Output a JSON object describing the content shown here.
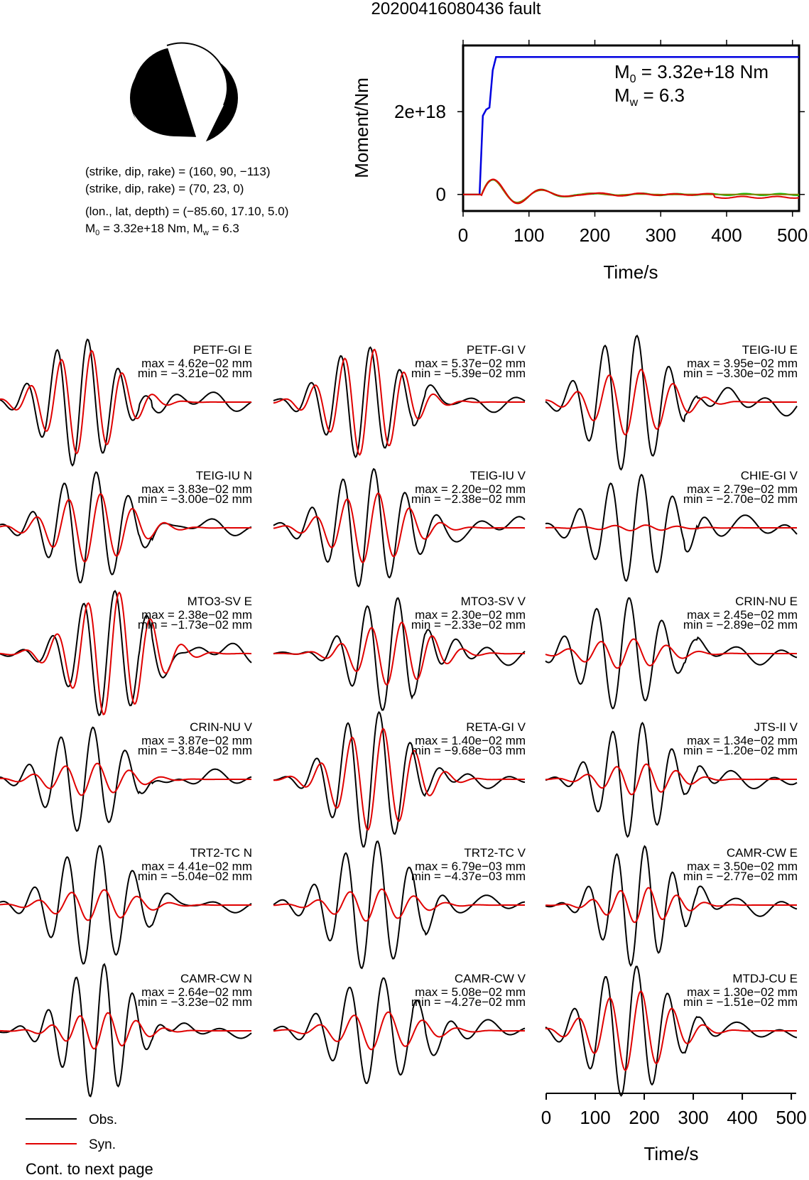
{
  "title": "20200416080436 fault",
  "source_info": {
    "line1": "(strike, dip, rake) = (160, 90, −113)",
    "line2": "(strike, dip, rake) = (70, 23, 0)",
    "line3": "(lon., lat, depth) = (−85.60, 17.10, 5.0)",
    "line4_a": "M",
    "line4_sub": "0",
    "line4_b": " = 3.32e+18 Nm, M",
    "line4_sub2": "w",
    "line4_c": " = 6.3"
  },
  "colors": {
    "obs": "#000000",
    "syn": "#e00000",
    "moment": "#0000e0",
    "green": "#00c000"
  },
  "legend": {
    "obs": "Obs.",
    "syn": "Syn.",
    "cont": "Cont. to next page"
  },
  "chart_data": [
    {
      "type": "line",
      "xlabel": "Time/s",
      "ylabel": "Moment/Nm",
      "xlim": [
        0,
        510
      ],
      "ylim": [
        -4e+17,
        3.6e+18
      ],
      "xticks": [
        "0",
        "100",
        "200",
        "300",
        "400",
        "500"
      ],
      "yticks": [
        "0",
        "2e+18"
      ],
      "annot_m0_a": "M",
      "annot_m0_sub": "0",
      "annot_m0_b": " = 3.32e+18 Nm",
      "annot_mw_a": "M",
      "annot_mw_sub": "w",
      "annot_mw_b": " = 6.3",
      "series": [
        {
          "x": [
            0,
            25,
            30,
            35,
            40,
            45,
            50,
            510
          ],
          "values": [
            0,
            0,
            1.9e+18,
            2.05e+18,
            2.1e+18,
            3e+18,
            3.32e+18,
            3.32e+18
          ]
        }
      ]
    },
    {
      "type": "line",
      "xlabel": "Time/s",
      "xlim": [
        0,
        510
      ],
      "xticks": [
        "0",
        "100",
        "200",
        "300",
        "400",
        "500"
      ],
      "traces": [
        {
          "label": "PETF-GI E",
          "max": "max = 4.62e−02 mm",
          "min": "min = −3.21e−02 mm"
        },
        {
          "label": "PETF-GI V",
          "max": "max = 5.37e−02 mm",
          "min": "min = −5.39e−02 mm"
        },
        {
          "label": "TEIG-IU E",
          "max": "max = 3.95e−02 mm",
          "min": "min = −3.30e−02 mm"
        },
        {
          "label": "TEIG-IU N",
          "max": "max = 3.83e−02 mm",
          "min": "min = −3.00e−02 mm"
        },
        {
          "label": "TEIG-IU V",
          "max": "max = 2.20e−02 mm",
          "min": "min = −2.38e−02 mm"
        },
        {
          "label": "CHIE-GI V",
          "max": "max = 2.79e−02 mm",
          "min": "min = −2.70e−02 mm"
        },
        {
          "label": "MTO3-SV E",
          "max": "max = 2.38e−02 mm",
          "min": "min = −1.73e−02 mm"
        },
        {
          "label": "MTO3-SV V",
          "max": "max = 2.30e−02 mm",
          "min": "min = −2.33e−02 mm"
        },
        {
          "label": "CRIN-NU E",
          "max": "max = 2.45e−02 mm",
          "min": "min = −2.89e−02 mm"
        },
        {
          "label": "CRIN-NU V",
          "max": "max = 3.87e−02 mm",
          "min": "min = −3.84e−02 mm"
        },
        {
          "label": "RETA-GI V",
          "max": "max = 1.40e−02 mm",
          "min": "min = −9.68e−03 mm"
        },
        {
          "label": "JTS-II V",
          "max": "max = 1.34e−02 mm",
          "min": "min = −1.20e−02 mm"
        },
        {
          "label": "TRT2-TC N",
          "max": "max = 4.41e−02 mm",
          "min": "min = −5.04e−02 mm"
        },
        {
          "label": "TRT2-TC V",
          "max": "max = 6.79e−03 mm",
          "min": "min = −4.37e−03 mm"
        },
        {
          "label": "CAMR-CW E",
          "max": "max = 3.50e−02 mm",
          "min": "min = −2.77e−02 mm"
        },
        {
          "label": "CAMR-CW N",
          "max": "max = 2.64e−02 mm",
          "min": "min = −3.23e−02 mm"
        },
        {
          "label": "CAMR-CW V",
          "max": "max = 5.08e−02 mm",
          "min": "min = −4.27e−02 mm"
        },
        {
          "label": "MTDJ-CU E",
          "max": "max = 1.30e−02 mm",
          "min": "min = −1.51e−02 mm"
        }
      ]
    }
  ]
}
